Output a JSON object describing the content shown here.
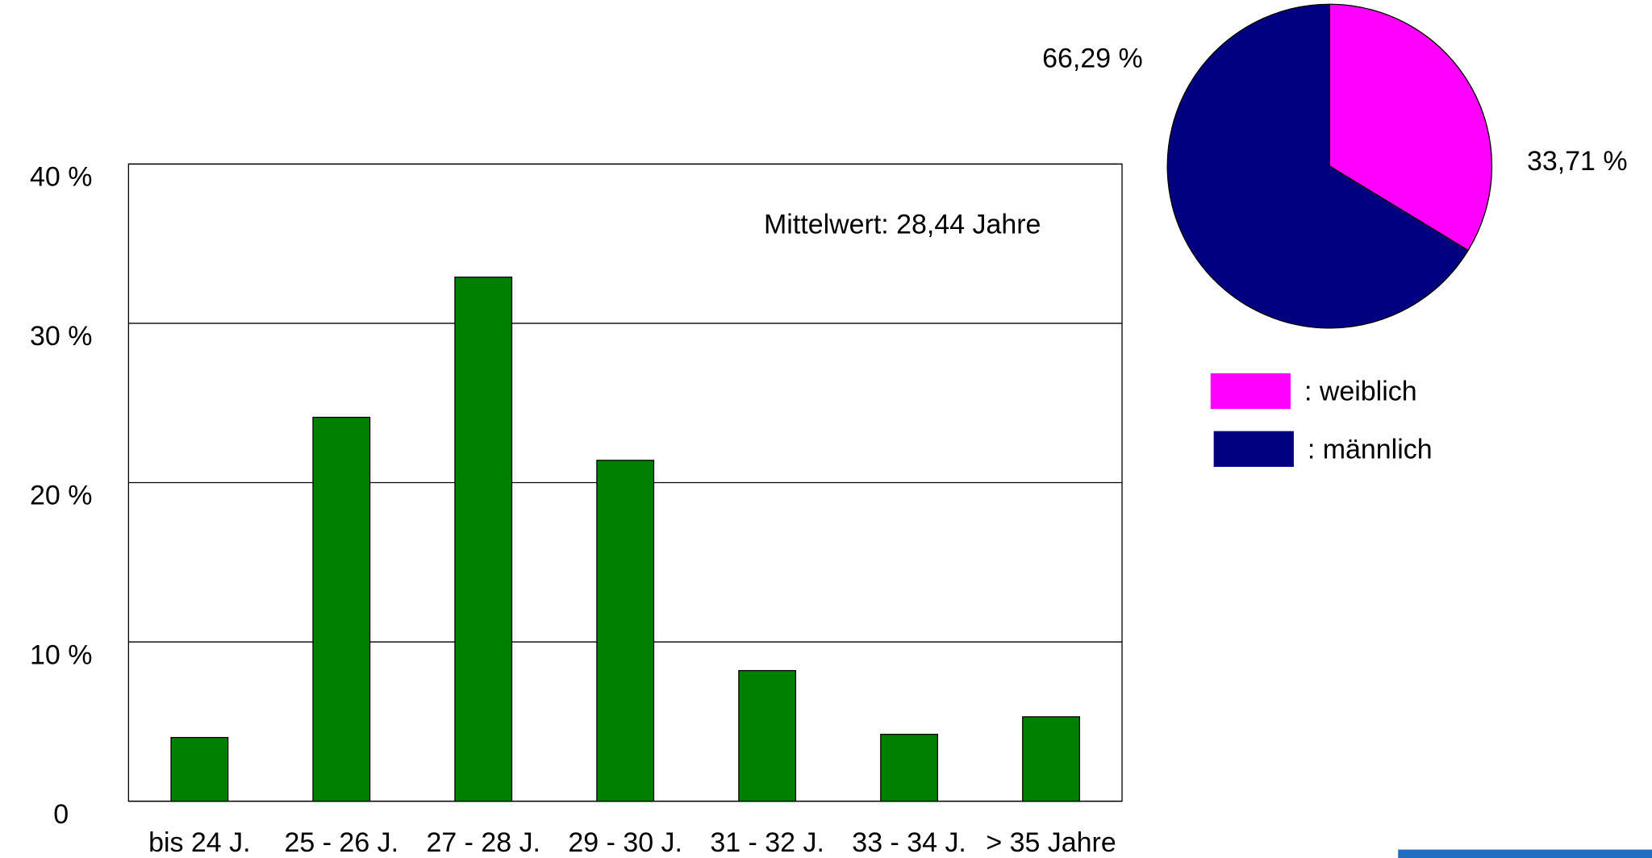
{
  "chart_data": [
    {
      "type": "bar",
      "annotation": "Mittelwert: 28,44 Jahre",
      "categories": [
        "bis 24 J.",
        "25 - 26 J.",
        "27 - 28 J.",
        "29 - 30 J.",
        "31 - 32 J.",
        "33 - 34 J.",
        "> 35 Jahre"
      ],
      "values": [
        4.0,
        24.1,
        32.9,
        21.4,
        8.2,
        4.2,
        5.3
      ],
      "color": "#008000",
      "ylim": [
        0,
        40
      ],
      "yticks": [
        0,
        {
          "value": 10,
          "label": "10 %"
        },
        {
          "value": 20,
          "label": "20 %"
        },
        {
          "value": 30,
          "label": "30 %"
        },
        {
          "value": 40,
          "label": "40 %"
        }
      ],
      "grid": true
    },
    {
      "type": "pie",
      "categories": [
        ": weiblich",
        ": männlich"
      ],
      "values": [
        33.71,
        66.29
      ],
      "value_labels": [
        "33,71 %",
        "66,29 %"
      ],
      "colors": [
        "#ff00ff",
        "#000080"
      ]
    }
  ]
}
